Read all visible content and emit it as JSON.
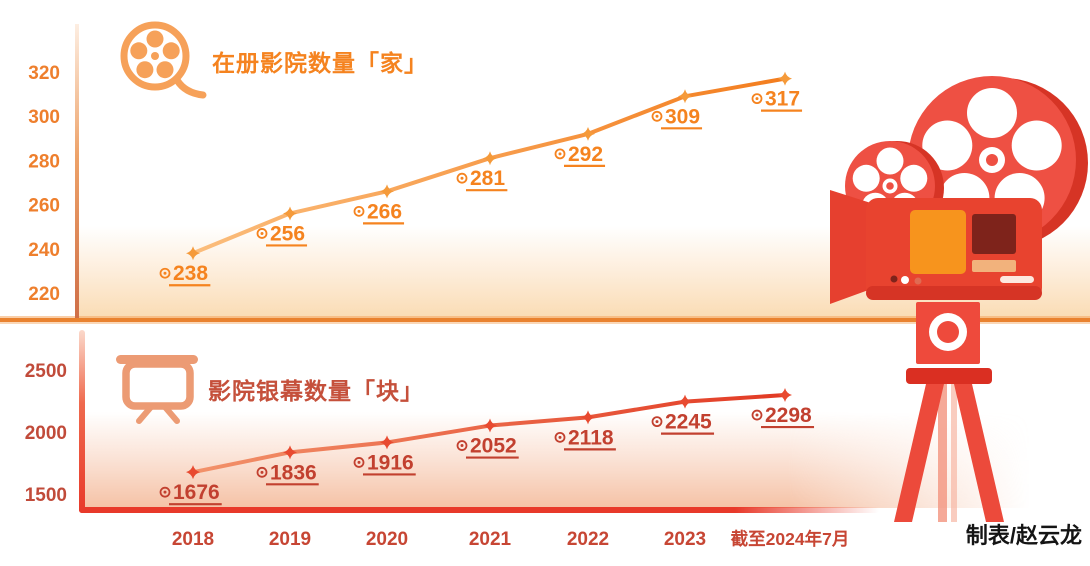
{
  "page": {
    "credit": "制表/赵云龙"
  },
  "x_axis": {
    "labels": [
      "2018",
      "2019",
      "2020",
      "2021",
      "2022",
      "2023",
      "截至2024年7月"
    ],
    "color": "#c74634"
  },
  "illustration": {
    "name": "film-projector-illustration",
    "primary_color": "#ec4a3b"
  },
  "chart_data": [
    {
      "type": "line",
      "title": "在册影院数量「家」",
      "icon": "film-reel-icon",
      "unit": "家",
      "categories": [
        "2018",
        "2019",
        "2020",
        "2021",
        "2022",
        "2023",
        "截至2024年7月"
      ],
      "values": [
        238,
        256,
        266,
        281,
        292,
        309,
        317
      ],
      "y_ticks": [
        320,
        300,
        280,
        260,
        240,
        220
      ],
      "ylim": [
        208,
        330
      ],
      "grid": false,
      "legend": "none",
      "colors": {
        "title": "#f5831f",
        "tick": "#ee7f2d",
        "label": "#f5831f",
        "line_start": "#fbbd7c",
        "line_end": "#f37d1e",
        "marker": "#f59a3a",
        "axis": "#e9822f"
      }
    },
    {
      "type": "line",
      "title": "影院银幕数量「块」",
      "icon": "projection-screen-icon",
      "unit": "块",
      "categories": [
        "2018",
        "2019",
        "2020",
        "2021",
        "2022",
        "2023",
        "截至2024年7月"
      ],
      "values": [
        1676,
        1836,
        1916,
        2052,
        2118,
        2245,
        2298
      ],
      "y_ticks": [
        2500,
        2000,
        1500
      ],
      "ylim": [
        1450,
        2600
      ],
      "grid": false,
      "legend": "none",
      "colors": {
        "title": "#c5503b",
        "tick": "#c14b3a",
        "label": "#c2402f",
        "line_start": "#f2926a",
        "line_end": "#e23a24",
        "marker": "#e84a30",
        "axis": "#e8392a"
      }
    }
  ]
}
